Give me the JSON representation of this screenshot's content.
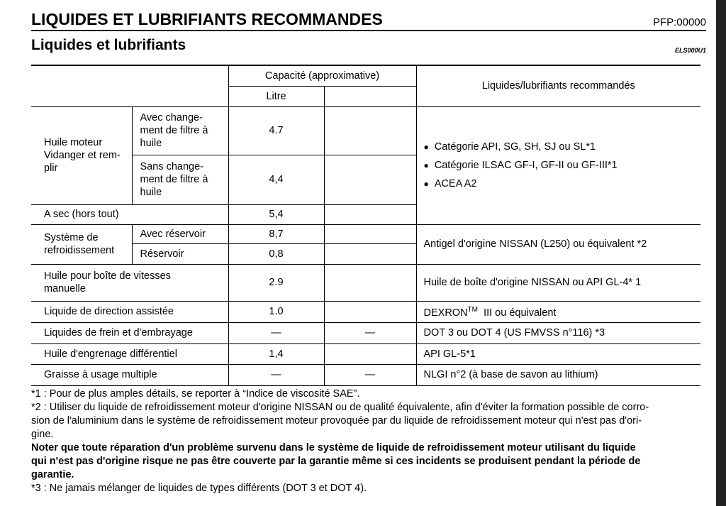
{
  "header": {
    "title": "LIQUIDES ET LUBRIFIANTS RECOMMANDES",
    "code": "PFP:00000",
    "subtitle": "Liquides et lubrifiants",
    "ref": "ELS000U1"
  },
  "table": {
    "capacity": "Capacité (approximative)",
    "unit": "Litre",
    "recommended": "Liquides/lubrifiants recommandés",
    "engine_oil": {
      "label": [
        "Huile moteur",
        "Vidanger et rem-",
        "plir"
      ],
      "with_filter": {
        "label": [
          "Avec change-",
          "ment de filtre à",
          "huile"
        ],
        "value": "4.7"
      },
      "without_filter": {
        "label": [
          "Sans change-",
          "ment de filtre à",
          "huile"
        ],
        "value": "4,4"
      },
      "dry": {
        "label": "A sec (hors tout)",
        "value": "5,4"
      },
      "spec": [
        "Catégorie API, SG, SH, SJ ou SL*1",
        "Catégorie ILSAC GF-I, GF-II ou GF-III*1",
        "ACEA A2"
      ]
    },
    "cooling": {
      "label": [
        "Système de",
        "refroidissement"
      ],
      "with_tank": {
        "label": "Avec réservoir",
        "value": "8,7"
      },
      "tank": {
        "label": "Réservoir",
        "value": "0,8"
      },
      "spec": "Antigel d'origine NISSAN (L250) ou équivalent *2"
    },
    "gearbox": {
      "label": [
        "Huile pour boîte de vitesses",
        "manuelle"
      ],
      "value": "2.9",
      "spec": "Huile de boîte d'origine NISSAN ou API GL-4* 1"
    },
    "steering": {
      "label": "Liquide de direction assistée",
      "value": "1.0",
      "spec": "DEXRON",
      "spec_sup": "TM",
      "spec_rest": "III ou équivalent"
    },
    "brake": {
      "label": "Liquides de frein et d'embrayage",
      "value": "—",
      "extra": "—",
      "spec": "DOT 3 ou DOT 4 (US FMVSS n°116) *3"
    },
    "differential": {
      "label": "Huile d'engrenage différentiel",
      "value": "1,4",
      "spec": "API GL-5*1"
    },
    "grease": {
      "label": "Graisse à usage multiple",
      "value": "—",
      "extra": "—",
      "spec": "NLGI n°2 (à base de savon au lithium)"
    }
  },
  "notes": [
    [
      "*1 : Pour de plus amples détails, se reporter à “Indice de viscosité SAE”."
    ],
    [
      "*2 : Utiliser du liquide de refroidissement moteur d'origine NISSAN ou de qualité équivalente, afin d'éviter la formation possible de corro-",
      "sion de l'aluminium dans le système de refroidissement moteur provoquée par du liquide de refroidissement moteur qui n'est pas d'ori-",
      "gine."
    ],
    [
      "Noter que toute réparation d'un problème survenu dans le système de liquide de refroidissement moteur utilisant du liquide",
      "qui n'est pas d'origine risque ne pas être couverte par la garantie même si ces incidents se produisent pendant la période de",
      "garantie."
    ],
    [
      "*3 : Ne jamais mélanger de liquides de types différents (DOT 3 et DOT 4)."
    ]
  ]
}
